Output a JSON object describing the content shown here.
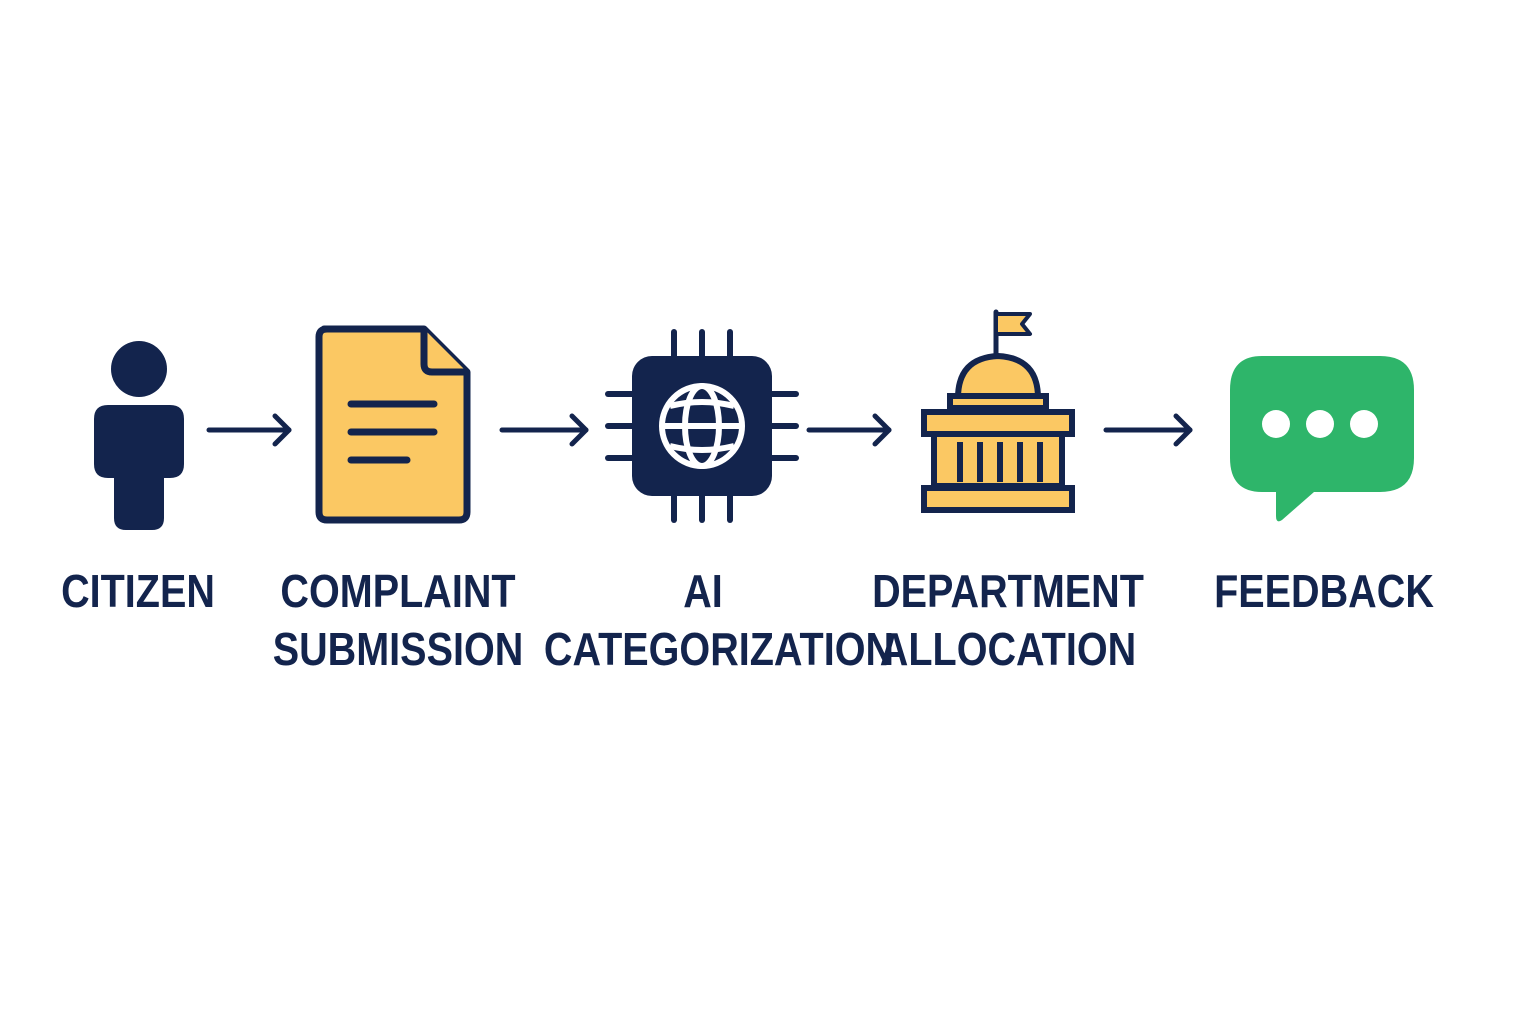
{
  "colors": {
    "navy": "#13244d",
    "yellow": "#fbc863",
    "green": "#2eb56a",
    "white": "#ffffff"
  },
  "steps": [
    {
      "icon": "person-icon",
      "lines": [
        "CITIZEN"
      ]
    },
    {
      "icon": "document-icon",
      "lines": [
        "COMPLAINT",
        "SUBMISSION"
      ]
    },
    {
      "icon": "ai-chip-icon",
      "lines": [
        "AI",
        "CATEGORIZATION"
      ]
    },
    {
      "icon": "government-building-icon",
      "lines": [
        "DEPARTMENT",
        "ALLOCATION"
      ]
    },
    {
      "icon": "chat-bubble-icon",
      "lines": [
        "FEEDBACK"
      ]
    }
  ],
  "arrows": [
    "arrow-icon",
    "arrow-icon",
    "arrow-icon",
    "arrow-icon"
  ]
}
